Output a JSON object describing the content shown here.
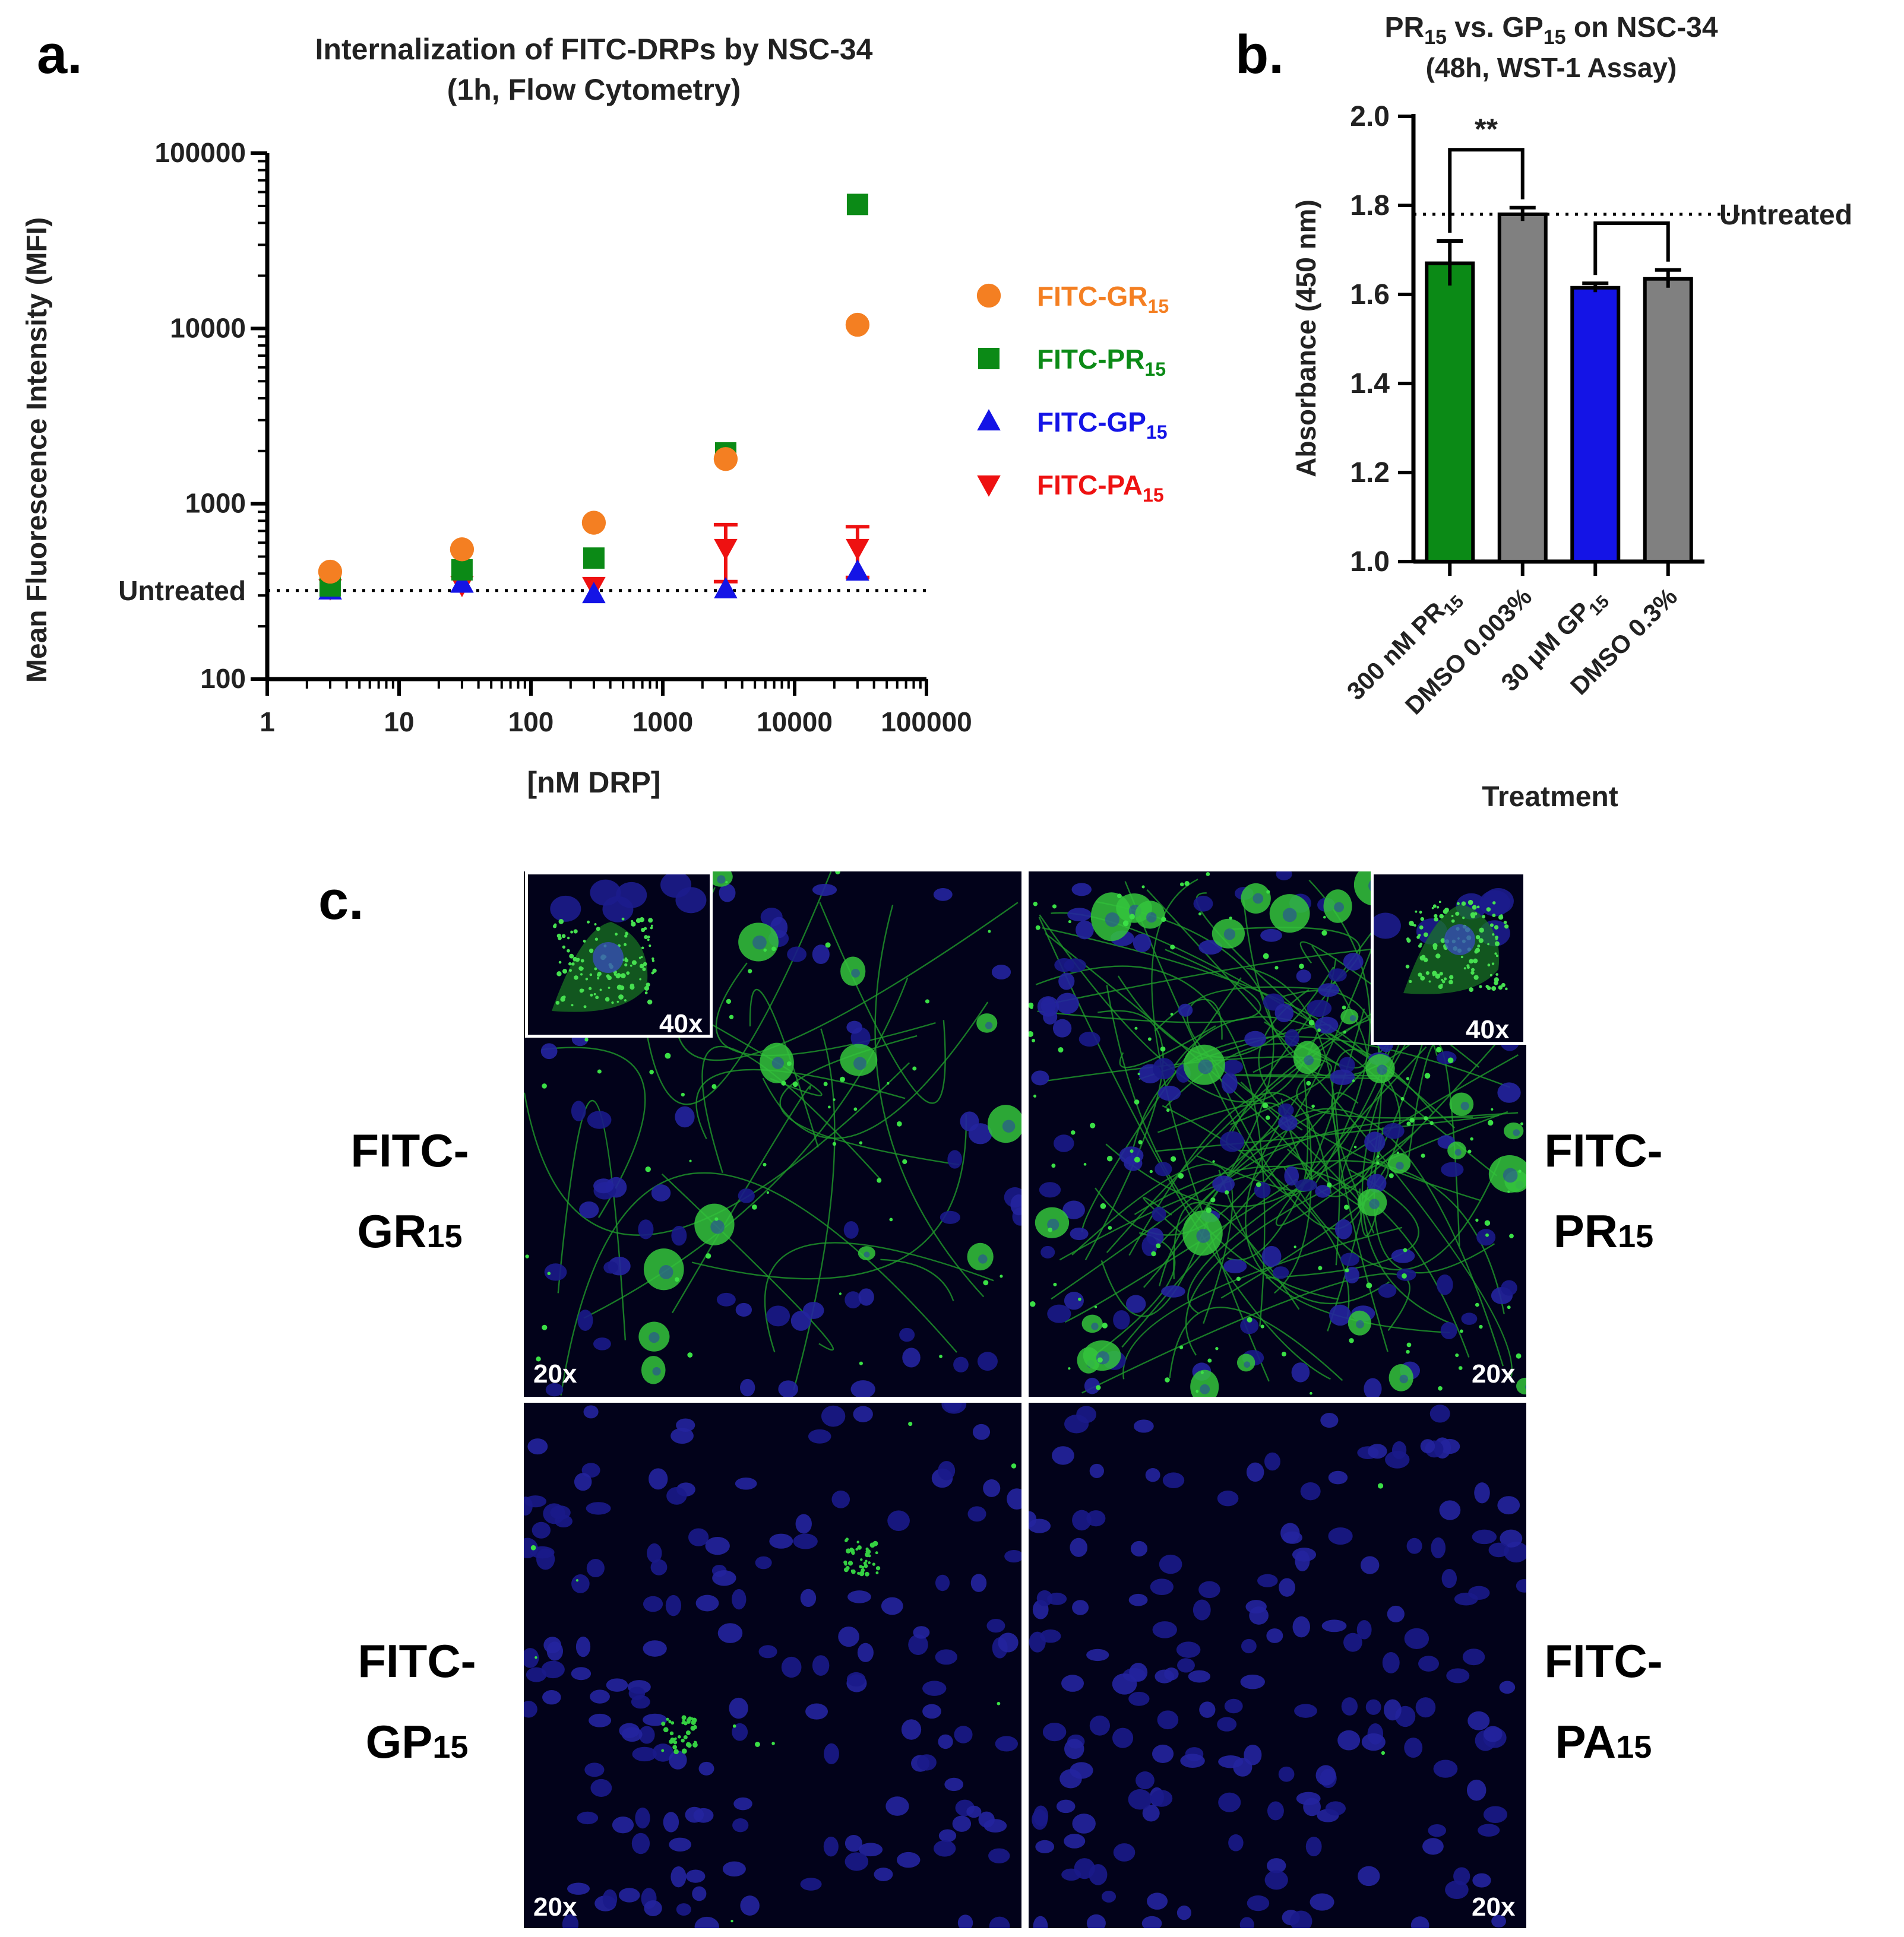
{
  "panels": {
    "a": {
      "letter": "a.",
      "title_line1": "Internalization of FITC-DRPs by NSC-34",
      "title_line2": "(1h, Flow Cytometry)",
      "xlabel": "[nM DRP]",
      "ylabel": "Mean Fluorescence Intensity (MFI)",
      "untreated_label": "Untreated"
    },
    "b": {
      "letter": "b.",
      "title_line1_main": "PR",
      "title_line1_sub": "15",
      "title_line1_mid": " vs. GP",
      "title_line1_sub2": "15",
      "title_line1_end": " on NSC-34",
      "title_line2": "(48h, WST-1 Assay)",
      "xlabel": "Treatment",
      "ylabel": "Absorbance (450 nm)",
      "untreated_label": "Untreated",
      "significance": "**"
    },
    "c": {
      "letter": "c.",
      "labels": [
        {
          "line1": "FITC-",
          "main": "GR",
          "sub": "15"
        },
        {
          "line1": "FITC-",
          "main": "PR",
          "sub": "15"
        },
        {
          "line1": "FITC-",
          "main": "GP",
          "sub": "15"
        },
        {
          "line1": "FITC-",
          "main": "PA",
          "sub": "15"
        }
      ],
      "mag_20x": "20x",
      "mag_40x": "40x"
    }
  },
  "chart_data": [
    {
      "type": "scatter",
      "panel": "a",
      "title": "Internalization of FITC-DRPs by NSC-34 (1h, Flow Cytometry)",
      "xlabel": "[nM DRP]",
      "ylabel": "Mean Fluorescence Intensity (MFI)",
      "xscale": "log",
      "yscale": "log",
      "xlim": [
        1,
        100000
      ],
      "ylim": [
        100,
        100000
      ],
      "xticks": [
        "1",
        "10",
        "100",
        "1000",
        "10000",
        "100000"
      ],
      "yticks": [
        "100",
        "1000",
        "10000",
        "100000"
      ],
      "reference_line": {
        "label": "Untreated",
        "y": 320,
        "style": "dotted"
      },
      "legend_position": "right",
      "series": [
        {
          "name": "FITC-GR",
          "name_sub": "15",
          "color": "#f47f22",
          "marker": "circle",
          "x": [
            3,
            30,
            300,
            3000,
            30000
          ],
          "y": [
            410,
            550,
            780,
            1800,
            10500
          ]
        },
        {
          "name": "FITC-PR",
          "name_sub": "15",
          "color": "#0b8a16",
          "marker": "square",
          "x": [
            3,
            30,
            300,
            3000,
            30000
          ],
          "y": [
            340,
            420,
            490,
            1950,
            51000
          ]
        },
        {
          "name": "FITC-GP",
          "name_sub": "15",
          "color": "#1414e6",
          "marker": "triangle-up",
          "x": [
            3,
            30,
            300,
            3000,
            30000
          ],
          "y": [
            320,
            350,
            305,
            325,
            410
          ]
        },
        {
          "name": "FITC-PA",
          "name_sub": "15",
          "color": "#ee1111",
          "marker": "triangle-down",
          "x": [
            3,
            30,
            300,
            3000,
            30000
          ],
          "y": [
            330,
            345,
            340,
            560,
            560
          ],
          "err": [
            0,
            0,
            0,
            200,
            180
          ]
        }
      ]
    },
    {
      "type": "bar",
      "panel": "b",
      "title": "PR15 vs. GP15 on NSC-34 (48h, WST-1 Assay)",
      "xlabel": "Treatment",
      "ylabel": "Absorbance (450 nm)",
      "ylim": [
        1.0,
        2.0
      ],
      "yticks": [
        "1.0",
        "1.2",
        "1.4",
        "1.6",
        "1.8",
        "2.0"
      ],
      "reference_line": {
        "label": "Untreated",
        "y": 1.78,
        "style": "dotted"
      },
      "categories": [
        {
          "pre": "300 nM PR",
          "sub": "15",
          "post": ""
        },
        {
          "pre": "DMSO 0.003%",
          "sub": "",
          "post": ""
        },
        {
          "pre": "30 μM GP",
          "sub": "15",
          "post": ""
        },
        {
          "pre": "DMSO 0.3%",
          "sub": "",
          "post": ""
        }
      ],
      "values": [
        1.67,
        1.78,
        1.615,
        1.635
      ],
      "errors": [
        0.05,
        0.015,
        0.01,
        0.02
      ],
      "colors": [
        "#0b8a16",
        "#808080",
        "#1414e6",
        "#808080"
      ],
      "brackets": [
        {
          "from": 0,
          "to": 1,
          "label": "**"
        },
        {
          "from": 2,
          "to": 3,
          "label": ""
        }
      ]
    }
  ]
}
